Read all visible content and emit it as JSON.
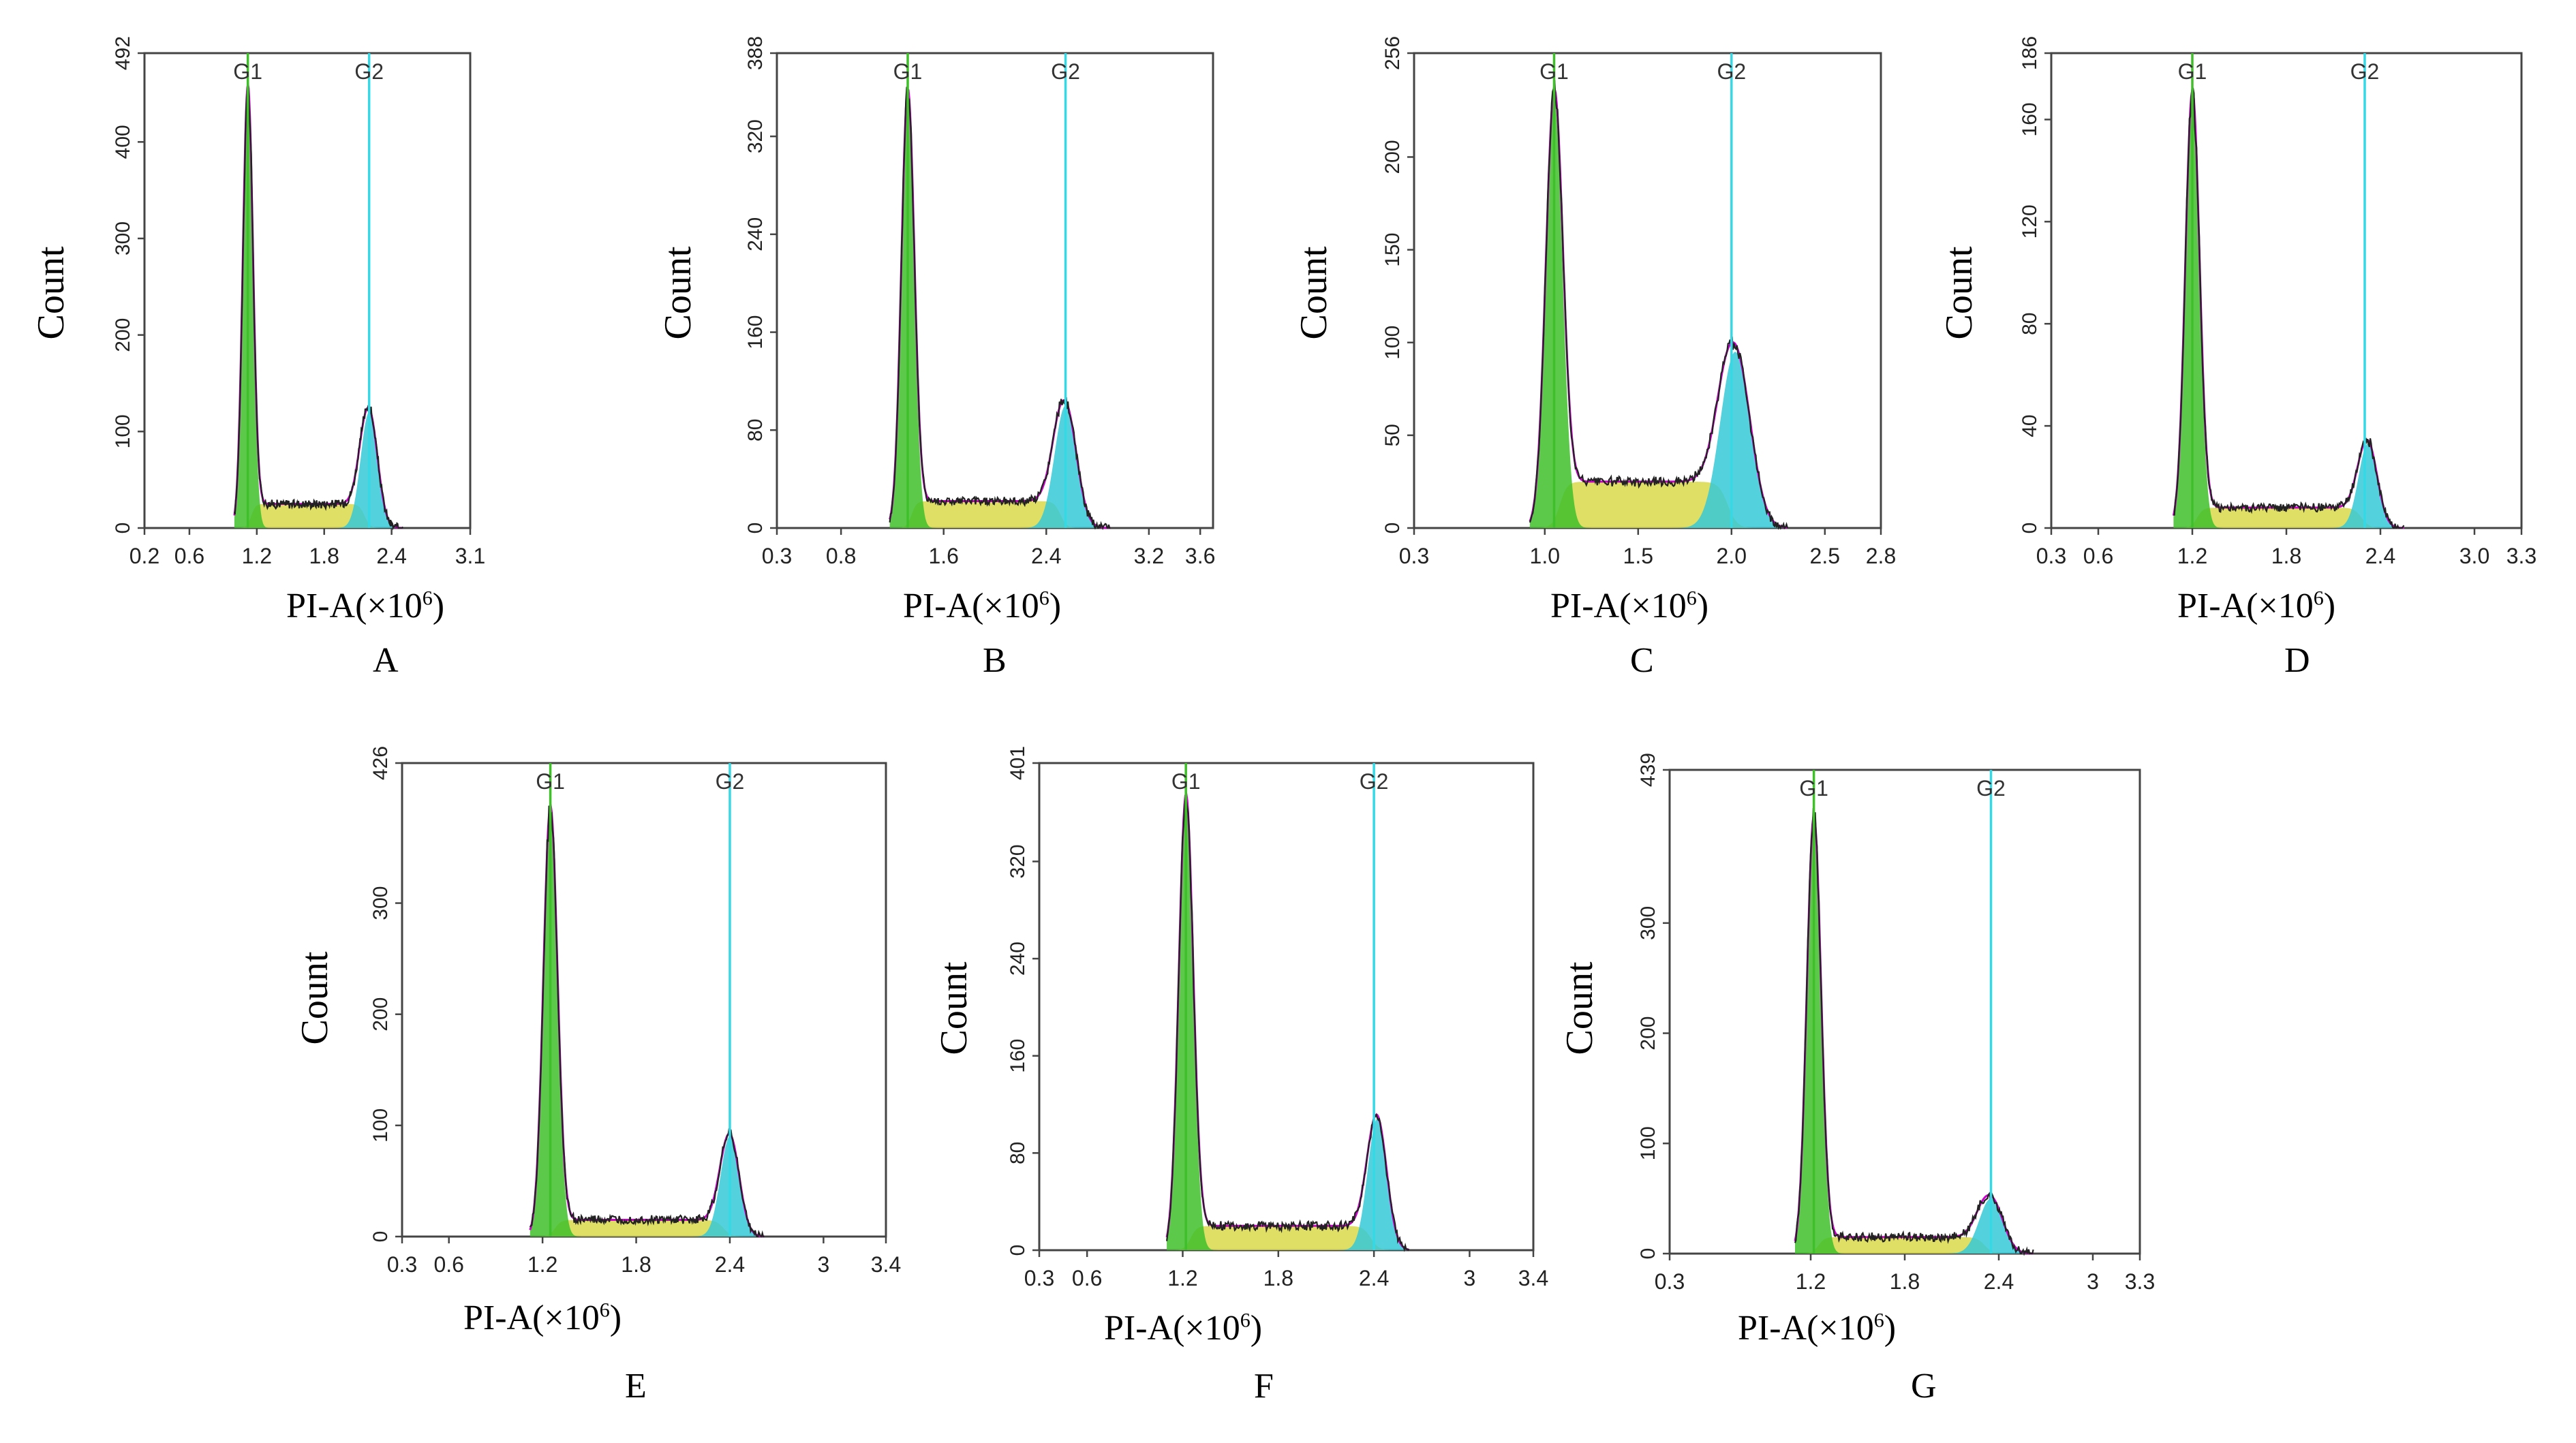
{
  "figure": {
    "colors": {
      "g1_fill": "#3fbf2a",
      "s_fill": "#d9d94a",
      "g2_fill": "#35c9d6",
      "g1_line": "#3fbf2a",
      "g2_line": "#35d9e6",
      "fit_line": "#cc00cc",
      "data_line": "#222222"
    }
  },
  "chart_data": [
    {
      "panel": "A",
      "type": "area",
      "xlabel": "PI-A(×10",
      "xlabel_exp": "6",
      "xlabel_close": ")",
      "ylabel": "Count",
      "xlim": [
        0.2,
        3.1
      ],
      "ylim": [
        0,
        492
      ],
      "xticks": [
        0.2,
        0.6,
        1.2,
        1.8,
        2.4,
        3.1
      ],
      "xtick_labels": [
        "0.2",
        "0.6",
        "1.2",
        "1.8",
        "2.4",
        "3.1"
      ],
      "yticks": [
        0,
        100,
        200,
        300,
        400,
        492
      ],
      "ytick_labels": [
        "0",
        "100",
        "200",
        "300",
        "400",
        "492"
      ],
      "markers": [
        {
          "label": "G1",
          "x": 1.12
        },
        {
          "label": "G2",
          "x": 2.2
        }
      ],
      "g1": {
        "peak_x": 1.12,
        "peak_y": 455,
        "sigma": 0.045
      },
      "g2": {
        "peak_x": 2.2,
        "peak_y": 120,
        "sigma": 0.075
      },
      "s_level": 25,
      "range": [
        1.0,
        2.5
      ]
    },
    {
      "panel": "B",
      "type": "area",
      "xlabel": "PI-A(×10",
      "xlabel_exp": "6",
      "xlabel_close": ")",
      "ylabel": "Count",
      "xlim": [
        0.3,
        3.7
      ],
      "ylim": [
        0,
        388
      ],
      "xticks": [
        0.3,
        0.8,
        1.6,
        2.4,
        3.2,
        3.6
      ],
      "xtick_labels": [
        "0.3",
        "0.8",
        "1.6",
        "2.4",
        "3.2",
        "3.6"
      ],
      "yticks": [
        0,
        80,
        160,
        240,
        320,
        388
      ],
      "ytick_labels": [
        "0",
        "80",
        "160",
        "240",
        "320",
        "388"
      ],
      "markers": [
        {
          "label": "G1",
          "x": 1.32
        },
        {
          "label": "G2",
          "x": 2.55
        }
      ],
      "g1": {
        "peak_x": 1.32,
        "peak_y": 355,
        "sigma": 0.05
      },
      "g2": {
        "peak_x": 2.55,
        "peak_y": 100,
        "sigma": 0.085
      },
      "s_level": 22,
      "range": [
        1.18,
        2.9
      ]
    },
    {
      "panel": "C",
      "type": "area",
      "xlabel": "PI-A(×10",
      "xlabel_exp": "6",
      "xlabel_close": ")",
      "ylabel": "Count",
      "xlim": [
        0.3,
        2.8
      ],
      "ylim": [
        0,
        256
      ],
      "xticks": [
        0.3,
        1.0,
        1.5,
        2.0,
        2.5,
        2.8
      ],
      "xtick_labels": [
        "0.3",
        "1.0",
        "1.5",
        "2.0",
        "2.5",
        "2.8"
      ],
      "yticks": [
        0,
        50,
        100,
        150,
        200,
        256
      ],
      "ytick_labels": [
        "0",
        "50",
        "100",
        "150",
        "200",
        "256"
      ],
      "markers": [
        {
          "label": "G1",
          "x": 1.05
        },
        {
          "label": "G2",
          "x": 2.0
        }
      ],
      "g1": {
        "peak_x": 1.05,
        "peak_y": 232,
        "sigma": 0.045
      },
      "g2": {
        "peak_x": 2.02,
        "peak_y": 95,
        "sigma": 0.08
      },
      "s_level": 25,
      "range": [
        0.92,
        2.3
      ]
    },
    {
      "panel": "D",
      "type": "area",
      "xlabel": "PI-A(×10",
      "xlabel_exp": "6",
      "xlabel_close": ")",
      "ylabel": "Count",
      "xlim": [
        0.3,
        3.3
      ],
      "ylim": [
        0,
        186
      ],
      "xticks": [
        0.3,
        0.6,
        1.2,
        1.8,
        2.4,
        3.0,
        3.3
      ],
      "xtick_labels": [
        "0.3",
        "0.6",
        "1.2",
        "1.8",
        "2.4",
        "3.0",
        "3.3"
      ],
      "yticks": [
        0,
        40,
        80,
        120,
        160,
        186
      ],
      "ytick_labels": [
        "0",
        "40",
        "80",
        "120",
        "160",
        "186"
      ],
      "markers": [
        {
          "label": "G1",
          "x": 1.2
        },
        {
          "label": "G2",
          "x": 2.3
        }
      ],
      "g1": {
        "peak_x": 1.2,
        "peak_y": 170,
        "sigma": 0.045
      },
      "g2": {
        "peak_x": 2.32,
        "peak_y": 33,
        "sigma": 0.06
      },
      "s_level": 8,
      "range": [
        1.08,
        2.55
      ]
    },
    {
      "panel": "E",
      "type": "area",
      "xlabel": "PI-A(×10",
      "xlabel_exp": "6",
      "xlabel_close": ")",
      "ylabel": "Count",
      "xlim": [
        0.3,
        3.4
      ],
      "ylim": [
        0,
        426
      ],
      "xticks": [
        0.3,
        0.6,
        1.2,
        1.8,
        2.4,
        3.0,
        3.4
      ],
      "xtick_labels": [
        "0.3",
        "0.6",
        "1.2",
        "1.8",
        "2.4",
        "3",
        "3.4"
      ],
      "yticks": [
        0,
        100,
        200,
        300,
        426
      ],
      "ytick_labels": [
        "0",
        "100",
        "200",
        "300",
        "426"
      ],
      "markers": [
        {
          "label": "G1",
          "x": 1.25
        },
        {
          "label": "G2",
          "x": 2.4
        }
      ],
      "g1": {
        "peak_x": 1.25,
        "peak_y": 385,
        "sigma": 0.045
      },
      "g2": {
        "peak_x": 2.4,
        "peak_y": 90,
        "sigma": 0.06
      },
      "s_level": 15,
      "range": [
        1.12,
        2.62
      ]
    },
    {
      "panel": "F",
      "type": "area",
      "xlabel": "PI-A(×10",
      "xlabel_exp": "6",
      "xlabel_close": ")",
      "ylabel": "Count",
      "xlim": [
        0.3,
        3.4
      ],
      "ylim": [
        0,
        401
      ],
      "xticks": [
        0.3,
        0.6,
        1.2,
        1.8,
        2.4,
        3.0,
        3.4
      ],
      "xtick_labels": [
        "0.3",
        "0.6",
        "1.2",
        "1.8",
        "2.4",
        "3",
        "3.4"
      ],
      "yticks": [
        0,
        80,
        160,
        240,
        320,
        401
      ],
      "ytick_labels": [
        "0",
        "80",
        "160",
        "240",
        "320",
        "401"
      ],
      "markers": [
        {
          "label": "G1",
          "x": 1.22
        },
        {
          "label": "G2",
          "x": 2.4
        }
      ],
      "g1": {
        "peak_x": 1.22,
        "peak_y": 372,
        "sigma": 0.045
      },
      "g2": {
        "peak_x": 2.42,
        "peak_y": 108,
        "sigma": 0.06
      },
      "s_level": 20,
      "range": [
        1.1,
        2.62
      ]
    },
    {
      "panel": "G",
      "type": "area",
      "xlabel": "PI-A(×10",
      "xlabel_exp": "6",
      "xlabel_close": ")",
      "ylabel": "Count",
      "xlim": [
        0.3,
        3.3
      ],
      "ylim": [
        0,
        439
      ],
      "xticks": [
        0.3,
        1.2,
        1.8,
        2.4,
        3.0,
        3.3
      ],
      "xtick_labels": [
        "0.3",
        "1.2",
        "1.8",
        "2.4",
        "3",
        "3.3"
      ],
      "yticks": [
        0,
        100,
        200,
        300,
        439
      ],
      "ytick_labels": [
        "0",
        "100",
        "200",
        "300",
        "439"
      ],
      "markers": [
        {
          "label": "G1",
          "x": 1.22
        },
        {
          "label": "G2",
          "x": 2.35
        }
      ],
      "g1": {
        "peak_x": 1.22,
        "peak_y": 395,
        "sigma": 0.045
      },
      "g2": {
        "peak_x": 2.35,
        "peak_y": 50,
        "sigma": 0.075
      },
      "s_level": 15,
      "range": [
        1.1,
        2.62
      ]
    }
  ]
}
